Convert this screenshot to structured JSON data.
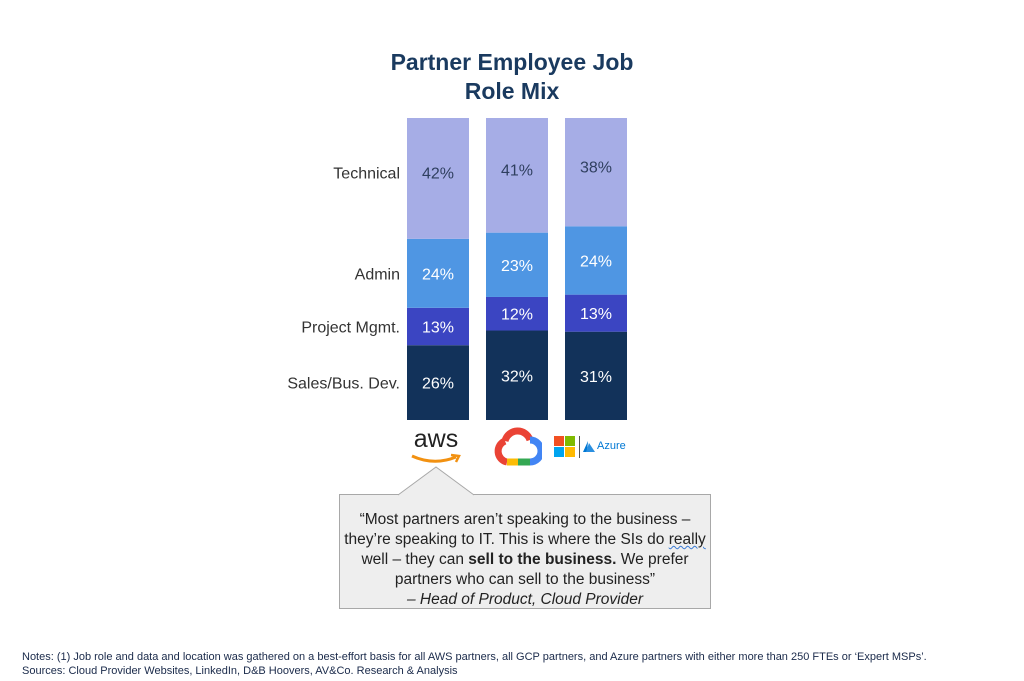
{
  "title_line1": "Partner Employee Job",
  "title_line2": "Role Mix",
  "chart_data": {
    "type": "bar",
    "stacked": true,
    "percent": true,
    "categories": [
      "AWS",
      "Google Cloud",
      "Azure"
    ],
    "series": [
      {
        "name": "Sales/Bus. Dev.",
        "values": [
          26,
          32,
          31
        ],
        "color": "#12325a",
        "text_color": "#ffffff"
      },
      {
        "name": "Project Mgmt.",
        "values": [
          13,
          12,
          13
        ],
        "color": "#3b45c2",
        "text_color": "#ffffff"
      },
      {
        "name": "Admin",
        "values": [
          24,
          23,
          24
        ],
        "color": "#4f96e3",
        "text_color": "#ffffff"
      },
      {
        "name": "Technical",
        "values": [
          42,
          41,
          38
        ],
        "color": "#a6ade6",
        "text_color": "#2f3f5f"
      }
    ],
    "value_suffix": "%",
    "legend": "left"
  },
  "logos": {
    "aws": {
      "text": "aws",
      "icon": "aws-smile-logo"
    },
    "gcp": {
      "icon": "google-cloud-logo"
    },
    "azure": {
      "text": "Azure",
      "icon": "microsoft-azure-logo"
    }
  },
  "quote": {
    "open": "“Most partners aren’t speaking to the business – they’re speaking to IT. This is where the SIs do",
    "wavy": "really",
    "mid": " well – they can",
    "bold": "sell to the business.",
    "close": " We prefer partners who can sell to the business”",
    "attribution": "– Head of Product, Cloud Provider"
  },
  "notes": {
    "line1": "Notes: (1) Job role and data and location was gathered on a best-effort basis for all AWS partners, all GCP partners, and Azure partners with either more than 250 FTEs or ‘Expert MSPs’.",
    "line2": "Sources: Cloud Provider Websites, LinkedIn, D&B Hoovers, AV&Co. Research & Analysis"
  },
  "colors": {
    "title": "#1a3a5f",
    "quote_bg": "#eeeeee",
    "quote_border": "#a8a8a8"
  }
}
